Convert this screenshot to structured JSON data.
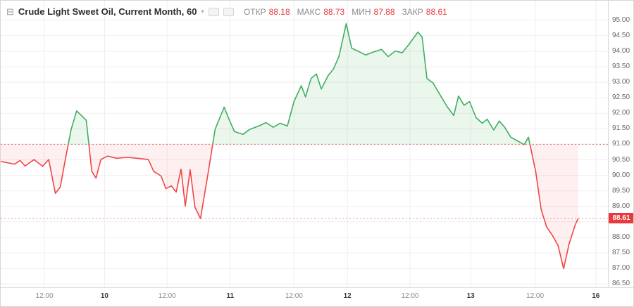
{
  "header": {
    "symbol_title": "Crude Light Sweet Oil, Current Month, 60",
    "collapse_glyph": "⊟",
    "chevron_glyph": "▾",
    "ohlc": [
      {
        "label": "ОТКР",
        "value": "88.18"
      },
      {
        "label": "МАКС",
        "value": "88.73"
      },
      {
        "label": "МИН",
        "value": "87.88"
      },
      {
        "label": "ЗАКР",
        "value": "88.61"
      }
    ]
  },
  "price_axis": {
    "last_price_label": "88.61"
  },
  "time_axis": {
    "ticks": [
      {
        "label": "12:00",
        "pos": 0.072,
        "major": false
      },
      {
        "label": "10",
        "pos": 0.171,
        "major": true
      },
      {
        "label": "12:00",
        "pos": 0.274,
        "major": false
      },
      {
        "label": "11",
        "pos": 0.378,
        "major": true
      },
      {
        "label": "12:00",
        "pos": 0.483,
        "major": false
      },
      {
        "label": "12",
        "pos": 0.571,
        "major": true
      },
      {
        "label": "12:00",
        "pos": 0.674,
        "major": false
      },
      {
        "label": "13",
        "pos": 0.774,
        "major": true
      },
      {
        "label": "12:00",
        "pos": 0.88,
        "major": false
      },
      {
        "label": "16",
        "pos": 0.98,
        "major": true
      }
    ]
  },
  "chart_data": {
    "type": "area",
    "style": "baseline",
    "title": "Crude Light Sweet Oil, Current Month, 60",
    "timeframe_minutes": 60,
    "baseline": 91.0,
    "last_price": 88.61,
    "ohlc": {
      "open": 88.18,
      "high": 88.73,
      "low": 87.88,
      "close": 88.61
    },
    "ylim": [
      86.39,
      95.63
    ],
    "price_ticks": [
      95.0,
      94.5,
      94.0,
      93.5,
      93.0,
      92.5,
      92.0,
      91.5,
      91.0,
      90.5,
      90.0,
      89.5,
      89.0,
      88.5,
      88.0,
      87.5,
      87.0,
      86.5
    ],
    "grid": true,
    "legend_position": "top-left",
    "points": [
      [
        0.0,
        90.45
      ],
      [
        0.012,
        90.4
      ],
      [
        0.023,
        90.36
      ],
      [
        0.032,
        90.48
      ],
      [
        0.04,
        90.3
      ],
      [
        0.055,
        90.51
      ],
      [
        0.069,
        90.29
      ],
      [
        0.079,
        90.51
      ],
      [
        0.09,
        89.42
      ],
      [
        0.098,
        89.62
      ],
      [
        0.106,
        90.47
      ],
      [
        0.116,
        91.48
      ],
      [
        0.125,
        92.08
      ],
      [
        0.133,
        91.93
      ],
      [
        0.141,
        91.77
      ],
      [
        0.15,
        90.13
      ],
      [
        0.157,
        89.91
      ],
      [
        0.165,
        90.51
      ],
      [
        0.176,
        90.62
      ],
      [
        0.191,
        90.55
      ],
      [
        0.208,
        90.58
      ],
      [
        0.225,
        90.55
      ],
      [
        0.243,
        90.51
      ],
      [
        0.252,
        90.13
      ],
      [
        0.264,
        89.98
      ],
      [
        0.272,
        89.57
      ],
      [
        0.281,
        89.66
      ],
      [
        0.289,
        89.46
      ],
      [
        0.297,
        90.2
      ],
      [
        0.304,
        89.01
      ],
      [
        0.312,
        90.18
      ],
      [
        0.32,
        88.97
      ],
      [
        0.329,
        88.61
      ],
      [
        0.341,
        90.0
      ],
      [
        0.353,
        91.48
      ],
      [
        0.368,
        92.2
      ],
      [
        0.376,
        91.81
      ],
      [
        0.385,
        91.41
      ],
      [
        0.399,
        91.32
      ],
      [
        0.41,
        91.48
      ],
      [
        0.425,
        91.59
      ],
      [
        0.437,
        91.7
      ],
      [
        0.449,
        91.55
      ],
      [
        0.46,
        91.68
      ],
      [
        0.472,
        91.59
      ],
      [
        0.483,
        92.38
      ],
      [
        0.495,
        92.89
      ],
      [
        0.502,
        92.53
      ],
      [
        0.511,
        93.12
      ],
      [
        0.52,
        93.27
      ],
      [
        0.528,
        92.78
      ],
      [
        0.539,
        93.21
      ],
      [
        0.548,
        93.43
      ],
      [
        0.557,
        93.83
      ],
      [
        0.569,
        94.89
      ],
      [
        0.578,
        94.1
      ],
      [
        0.59,
        93.99
      ],
      [
        0.601,
        93.88
      ],
      [
        0.613,
        93.97
      ],
      [
        0.627,
        94.06
      ],
      [
        0.638,
        93.83
      ],
      [
        0.65,
        94.01
      ],
      [
        0.661,
        93.95
      ],
      [
        0.673,
        94.24
      ],
      [
        0.687,
        94.62
      ],
      [
        0.694,
        94.46
      ],
      [
        0.702,
        93.12
      ],
      [
        0.712,
        92.98
      ],
      [
        0.724,
        92.58
      ],
      [
        0.735,
        92.22
      ],
      [
        0.746,
        91.93
      ],
      [
        0.754,
        92.56
      ],
      [
        0.763,
        92.26
      ],
      [
        0.772,
        92.38
      ],
      [
        0.783,
        91.86
      ],
      [
        0.793,
        91.68
      ],
      [
        0.801,
        91.81
      ],
      [
        0.812,
        91.46
      ],
      [
        0.821,
        91.75
      ],
      [
        0.83,
        91.55
      ],
      [
        0.84,
        91.23
      ],
      [
        0.852,
        91.1
      ],
      [
        0.862,
        90.99
      ],
      [
        0.869,
        91.23
      ],
      [
        0.881,
        90.13
      ],
      [
        0.89,
        88.9
      ],
      [
        0.899,
        88.34
      ],
      [
        0.909,
        88.05
      ],
      [
        0.918,
        87.73
      ],
      [
        0.927,
        86.99
      ],
      [
        0.936,
        87.78
      ],
      [
        0.946,
        88.4
      ],
      [
        0.951,
        88.61
      ]
    ],
    "colors": {
      "up_line": "#3fae61",
      "up_fill": "rgba(103,183,119,0.13)",
      "down_line": "#ef4646",
      "down_fill": "rgba(239,70,70,0.08)",
      "baseline_line": "#e0685c",
      "last_price_line": "rgba(232,57,61,0.55)",
      "tag_bg": "#e8393d",
      "value_red": "#e8393d",
      "grid": "#efefef"
    }
  }
}
